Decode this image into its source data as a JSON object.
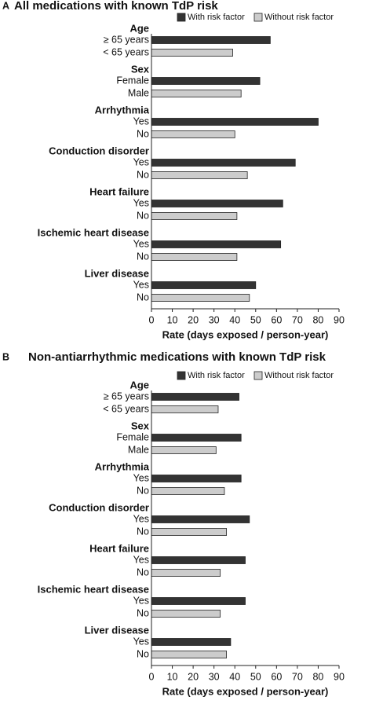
{
  "chart_data": [
    {
      "type": "bar",
      "orientation": "horizontal",
      "panel": "A",
      "title": "All medications with known TdP risk",
      "xlabel": "Rate (days exposed / person-year)",
      "groups": [
        "Age",
        "Sex",
        "Arrhythmia",
        "Conduction disorder",
        "Heart failure",
        "Ischemic heart disease",
        "Liver disease"
      ],
      "group_labels": [
        [
          "≥ 65 years",
          "< 65 years"
        ],
        [
          "Female",
          "Male"
        ],
        [
          "Yes",
          "No"
        ],
        [
          "Yes",
          "No"
        ],
        [
          "Yes",
          "No"
        ],
        [
          "Yes",
          "No"
        ],
        [
          "Yes",
          "No"
        ]
      ],
      "series": [
        {
          "name": "With risk factor",
          "color": "#333333",
          "values": [
            57,
            52,
            80,
            69,
            63,
            62,
            50
          ]
        },
        {
          "name": "Without risk factor",
          "color": "#cccccc",
          "values": [
            39,
            43,
            40,
            46,
            41,
            41,
            47
          ]
        }
      ],
      "xlim": [
        0,
        90
      ],
      "xticks": [
        0,
        10,
        20,
        30,
        40,
        50,
        60,
        70,
        80,
        90
      ]
    },
    {
      "type": "bar",
      "orientation": "horizontal",
      "panel": "B",
      "title": "Non-antiarrhythmic medications with known TdP risk",
      "xlabel": "Rate (days exposed / person-year)",
      "groups": [
        "Age",
        "Sex",
        "Arrhythmia",
        "Conduction disorder",
        "Heart failure",
        "Ischemic heart disease",
        "Liver disease"
      ],
      "group_labels": [
        [
          "≥ 65 years",
          "< 65 years"
        ],
        [
          "Female",
          "Male"
        ],
        [
          "Yes",
          "No"
        ],
        [
          "Yes",
          "No"
        ],
        [
          "Yes",
          "No"
        ],
        [
          "Yes",
          "No"
        ],
        [
          "Yes",
          "No"
        ]
      ],
      "series": [
        {
          "name": "With risk factor",
          "color": "#333333",
          "values": [
            42,
            43,
            43,
            47,
            45,
            45,
            38
          ]
        },
        {
          "name": "Without risk factor",
          "color": "#cccccc",
          "values": [
            32,
            31,
            35,
            36,
            33,
            33,
            36
          ]
        }
      ],
      "xlim": [
        0,
        90
      ],
      "xticks": [
        0,
        10,
        20,
        30,
        40,
        50,
        60,
        70,
        80,
        90
      ]
    }
  ]
}
